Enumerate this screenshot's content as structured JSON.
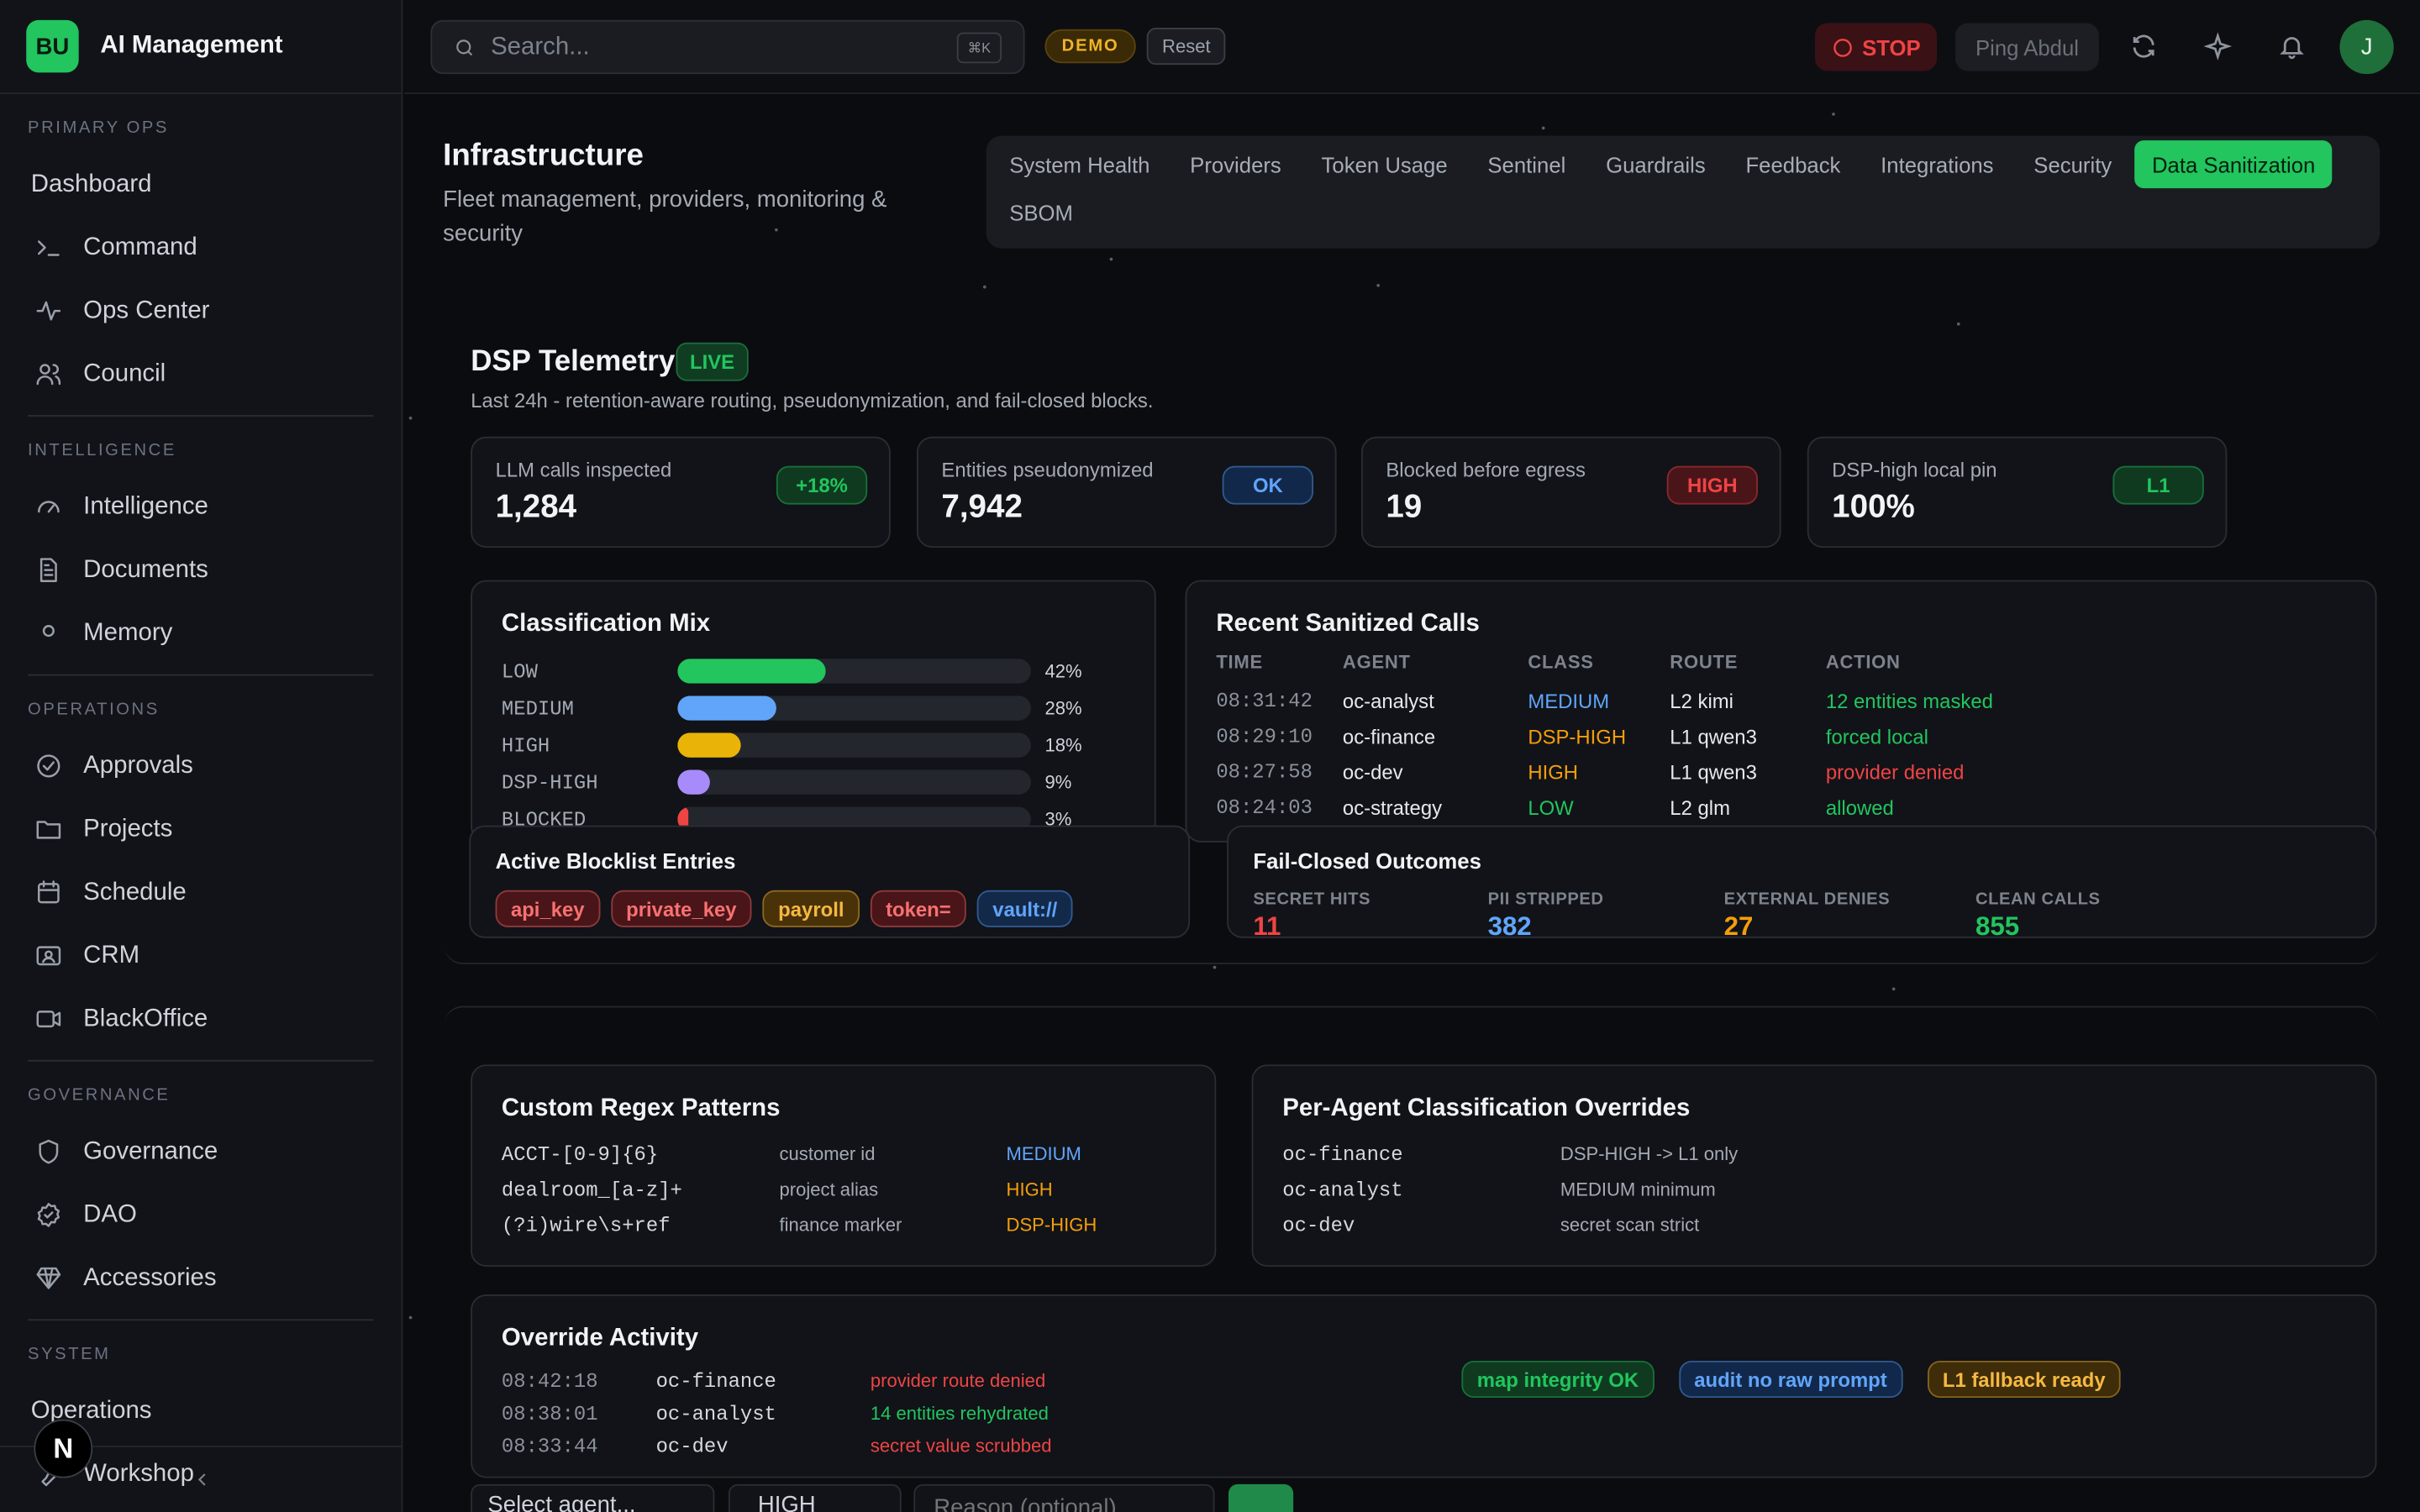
{
  "app": {
    "initials": "BU",
    "name": "AI Management"
  },
  "sidebar": {
    "sections": [
      {
        "heading": "PRIMARY OPS",
        "items": [
          {
            "label": "Dashboard",
            "icon": "none"
          },
          {
            "label": "Command",
            "icon": "terminal-icon"
          },
          {
            "label": "Ops Center",
            "icon": "activity-icon"
          },
          {
            "label": "Council",
            "icon": "users-icon"
          }
        ]
      },
      {
        "heading": "INTELLIGENCE",
        "items": [
          {
            "label": "Intelligence",
            "icon": "gauge-icon"
          },
          {
            "label": "Documents",
            "icon": "document-icon"
          },
          {
            "label": "Memory",
            "icon": "circle-icon"
          }
        ]
      },
      {
        "heading": "OPERATIONS",
        "items": [
          {
            "label": "Approvals",
            "icon": "check-circle-icon"
          },
          {
            "label": "Projects",
            "icon": "folder-icon"
          },
          {
            "label": "Schedule",
            "icon": "calendar-icon"
          },
          {
            "label": "CRM",
            "icon": "contact-icon"
          },
          {
            "label": "BlackOffice",
            "icon": "video-icon"
          }
        ]
      },
      {
        "heading": "GOVERNANCE",
        "items": [
          {
            "label": "Governance",
            "icon": "shield-icon"
          },
          {
            "label": "DAO",
            "icon": "badge-check-icon"
          },
          {
            "label": "Accessories",
            "icon": "gem-icon"
          }
        ]
      },
      {
        "heading": "SYSTEM",
        "items": [
          {
            "label": "Operations",
            "icon": "none"
          },
          {
            "label": "Workshop",
            "icon": "wrench-icon"
          }
        ]
      }
    ],
    "collapse_icon": "chevron-left-icon",
    "corner_badge": "N"
  },
  "topbar": {
    "search_placeholder": "Search...",
    "search_shortcut": "⌘K",
    "demo_badge": "DEMO",
    "reset_label": "Reset",
    "stop_label": "STOP",
    "ping_label": "Ping Abdul",
    "avatar_initial": "J"
  },
  "header": {
    "title": "Infrastructure",
    "subtitle": "Fleet management, providers, monitoring & security",
    "tabs": [
      "System Health",
      "Providers",
      "Token Usage",
      "Sentinel",
      "Guardrails",
      "Feedback",
      "Integrations",
      "Security",
      "Data Sanitization",
      "SBOM"
    ],
    "active_tab": "Data Sanitization"
  },
  "dsp": {
    "title": "DSP Telemetry",
    "live_badge": "LIVE",
    "subtitle": "Last 24h - retention-aware routing, pseudonymization, and fail-closed blocks.",
    "stats": [
      {
        "label": "LLM calls inspected",
        "value": "1,284",
        "pill": "+18%",
        "pill_color": "#22c55e"
      },
      {
        "label": "Entities pseudonymized",
        "value": "7,942",
        "pill": "OK",
        "pill_color": "#60a5fa"
      },
      {
        "label": "Blocked before egress",
        "value": "19",
        "pill": "HIGH",
        "pill_color": "#ef4444"
      },
      {
        "label": "DSP-high local pin",
        "value": "100%",
        "pill": "L1",
        "pill_color": "#22c55e"
      }
    ]
  },
  "classification": {
    "title": "Classification Mix",
    "rows": [
      {
        "label": "LOW",
        "percent": 42,
        "pct_text": "42%",
        "color": "#22c55e"
      },
      {
        "label": "MEDIUM",
        "percent": 28,
        "pct_text": "28%",
        "color": "#60a5fa"
      },
      {
        "label": "HIGH",
        "percent": 18,
        "pct_text": "18%",
        "color": "#eab308"
      },
      {
        "label": "DSP-HIGH",
        "percent": 9,
        "pct_text": "9%",
        "color": "#a78bfa"
      },
      {
        "label": "BLOCKED",
        "percent": 3,
        "pct_text": "3%",
        "color": "#ef4444"
      }
    ]
  },
  "recent_calls": {
    "title": "Recent Sanitized Calls",
    "columns": [
      "TIME",
      "AGENT",
      "CLASS",
      "ROUTE",
      "ACTION"
    ],
    "rows": [
      {
        "time": "08:31:42",
        "agent": "oc-analyst",
        "class": "MEDIUM",
        "class_color": "#60a5fa",
        "route": "L2 kimi",
        "action": "12 entities masked",
        "action_color": "#22c55e"
      },
      {
        "time": "08:29:10",
        "agent": "oc-finance",
        "class": "DSP-HIGH",
        "class_color": "#f59e0b",
        "route": "L1 qwen3",
        "action": "forced local",
        "action_color": "#22c55e"
      },
      {
        "time": "08:27:58",
        "agent": "oc-dev",
        "class": "HIGH",
        "class_color": "#f59e0b",
        "route": "L1 qwen3",
        "action": "provider denied",
        "action_color": "#ef4444"
      },
      {
        "time": "08:24:03",
        "agent": "oc-strategy",
        "class": "LOW",
        "class_color": "#22c55e",
        "route": "L2 glm",
        "action": "allowed",
        "action_color": "#22c55e"
      }
    ]
  },
  "blocklist": {
    "title": "Active Blocklist Entries",
    "entries": [
      {
        "label": "api_key",
        "color": "#f87171",
        "bg": "#4a1519"
      },
      {
        "label": "private_key",
        "color": "#f87171",
        "bg": "#4a1519"
      },
      {
        "label": "payroll",
        "color": "#f5b942",
        "bg": "#4a3208"
      },
      {
        "label": "token=",
        "color": "#f87171",
        "bg": "#4a1519"
      },
      {
        "label": "vault://",
        "color": "#60a5fa",
        "bg": "#13294a"
      }
    ]
  },
  "fail_closed": {
    "title": "Fail-Closed Outcomes",
    "metrics": [
      {
        "label": "SECRET HITS",
        "value": "11",
        "color": "#ef4444"
      },
      {
        "label": "PII STRIPPED",
        "value": "382",
        "color": "#60a5fa"
      },
      {
        "label": "EXTERNAL DENIES",
        "value": "27",
        "color": "#f59e0b"
      },
      {
        "label": "CLEAN CALLS",
        "value": "855",
        "color": "#22c55e"
      }
    ]
  },
  "regex": {
    "title": "Custom Regex Patterns",
    "rows": [
      {
        "pattern": "ACCT-[0-9]{6}",
        "desc": "customer id",
        "level": "MEDIUM",
        "color": "#60a5fa"
      },
      {
        "pattern": "dealroom_[a-z]+",
        "desc": "project alias",
        "level": "HIGH",
        "color": "#f59e0b"
      },
      {
        "pattern": "(?i)wire\\s+ref",
        "desc": "finance marker",
        "level": "DSP-HIGH",
        "color": "#f59e0b"
      }
    ]
  },
  "overrides": {
    "title": "Per-Agent Classification Overrides",
    "rows": [
      {
        "agent": "oc-finance",
        "rule": "DSP-HIGH -> L1 only"
      },
      {
        "agent": "oc-analyst",
        "rule": "MEDIUM minimum"
      },
      {
        "agent": "oc-dev",
        "rule": "secret scan strict"
      }
    ]
  },
  "override_activity": {
    "title": "Override Activity",
    "rows": [
      {
        "time": "08:42:18",
        "agent": "oc-finance",
        "event": "provider route denied",
        "color": "#ef4444"
      },
      {
        "time": "08:38:01",
        "agent": "oc-analyst",
        "event": "14 entities rehydrated",
        "color": "#22c55e"
      },
      {
        "time": "08:33:44",
        "agent": "oc-dev",
        "event": "secret value scrubbed",
        "color": "#ef4444"
      }
    ],
    "badges": [
      {
        "label": "map integrity OK",
        "color": "#22c55e",
        "bg": "#0f3a20"
      },
      {
        "label": "audit no raw prompt",
        "color": "#60a5fa",
        "bg": "#12284a"
      },
      {
        "label": "L1 fallback ready",
        "color": "#f5b942",
        "bg": "#3f2c08"
      }
    ]
  },
  "footer_form": {
    "agent_select": "Select agent...",
    "level_select": "HIGH",
    "reason_placeholder": "Reason (optional)"
  }
}
